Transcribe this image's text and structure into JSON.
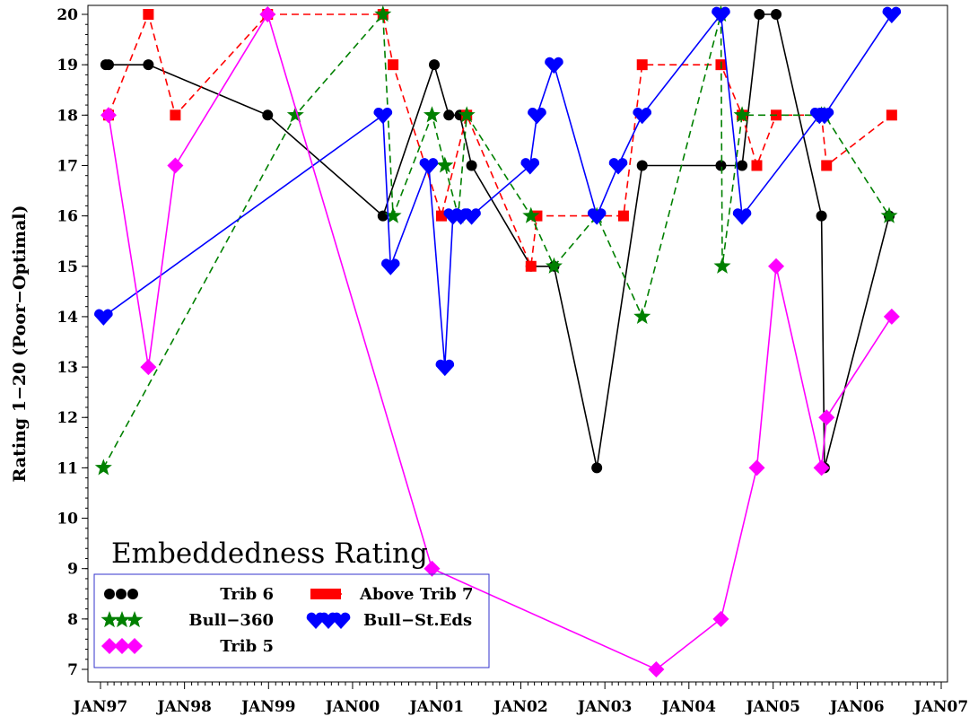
{
  "chart_data": {
    "type": "line",
    "ylabel": "Rating 1−20 (Poor−Optimal)",
    "xlabel": "",
    "ylim": [
      7,
      20
    ],
    "xlim": [
      "1997-01-01",
      "2007-01-01"
    ],
    "y_ticks": [
      7,
      8,
      9,
      10,
      11,
      12,
      13,
      14,
      15,
      16,
      17,
      18,
      19,
      20
    ],
    "x_ticks": [
      "1997-01-01",
      "1998-01-01",
      "1999-01-01",
      "2000-01-01",
      "2001-01-01",
      "2002-01-01",
      "2003-01-01",
      "2004-01-01",
      "2005-01-01",
      "2006-01-01",
      "2007-01-01"
    ],
    "x_tick_labels": [
      "JAN97",
      "JAN98",
      "JAN99",
      "JAN00",
      "JAN01",
      "JAN02",
      "JAN03",
      "JAN04",
      "JAN05",
      "JAN06",
      "JAN07"
    ],
    "legend": {
      "title": "Embeddedness Rating",
      "placement": "bottom-left"
    },
    "series": [
      {
        "name": "Trib 6",
        "color": "#000000",
        "marker": "circle",
        "dash": "solid",
        "points": [
          [
            "1997-01-24",
            19
          ],
          [
            "1997-02-05",
            19
          ],
          [
            "1997-07-28",
            19
          ],
          [
            "1998-12-28",
            18
          ],
          [
            "2000-05-12",
            16
          ],
          [
            "2000-12-21",
            19
          ],
          [
            "2001-02-22",
            18
          ],
          [
            "2001-04-11",
            18
          ],
          [
            "2001-06-01",
            17
          ],
          [
            "2002-02-14",
            15
          ],
          [
            "2002-05-25",
            15
          ],
          [
            "2002-11-27",
            11
          ],
          [
            "2003-06-12",
            17
          ],
          [
            "2004-05-19",
            17
          ],
          [
            "2004-08-19",
            17
          ],
          [
            "2004-11-02",
            20
          ],
          [
            "2005-01-14",
            20
          ],
          [
            "2005-07-30",
            16
          ],
          [
            "2005-08-12",
            11
          ],
          [
            "2006-05-20",
            16
          ]
        ]
      },
      {
        "name": "Above Trib 7",
        "color": "#ff0000",
        "marker": "square",
        "dash": "dashed",
        "points": [
          [
            "1997-02-05",
            18
          ],
          [
            "1997-07-28",
            20
          ],
          [
            "1997-11-22",
            18
          ],
          [
            "1998-12-28",
            20
          ],
          [
            "2000-05-12",
            20
          ],
          [
            "2000-06-25",
            19
          ],
          [
            "2001-01-21",
            16
          ],
          [
            "2001-05-11",
            18
          ],
          [
            "2002-02-14",
            15
          ],
          [
            "2002-03-12",
            16
          ],
          [
            "2003-03-23",
            16
          ],
          [
            "2003-06-12",
            19
          ],
          [
            "2004-05-19",
            19
          ],
          [
            "2004-08-19",
            18
          ],
          [
            "2004-10-22",
            17
          ],
          [
            "2005-01-14",
            18
          ],
          [
            "2005-07-30",
            18
          ],
          [
            "2005-08-21",
            17
          ],
          [
            "2006-05-31",
            18
          ]
        ]
      },
      {
        "name": "Bull−360",
        "color": "#008000",
        "marker": "star",
        "dash": "dashed",
        "points": [
          [
            "1997-01-14",
            11
          ],
          [
            "1999-04-28",
            18
          ],
          [
            "2000-05-12",
            20
          ],
          [
            "2000-06-25",
            16
          ],
          [
            "2000-12-11",
            18
          ],
          [
            "2001-02-05",
            17
          ],
          [
            "2001-04-04",
            16
          ],
          [
            "2001-05-11",
            18
          ],
          [
            "2002-02-14",
            16
          ],
          [
            "2002-05-25",
            15
          ],
          [
            "2002-11-27",
            16
          ],
          [
            "2003-06-12",
            14
          ],
          [
            "2004-05-19",
            20
          ],
          [
            "2004-05-25",
            15
          ],
          [
            "2004-08-19",
            18
          ],
          [
            "2005-07-30",
            18
          ],
          [
            "2005-08-12",
            18
          ],
          [
            "2006-05-20",
            16
          ]
        ]
      },
      {
        "name": "Bull−St.Eds",
        "color": "#0000ff",
        "marker": "heart",
        "dash": "solid",
        "points": [
          [
            "1997-01-14",
            14
          ],
          [
            "2000-05-12",
            18
          ],
          [
            "2000-06-14",
            15
          ],
          [
            "2000-11-27",
            17
          ],
          [
            "2001-02-05",
            13
          ],
          [
            "2001-03-12",
            16
          ],
          [
            "2001-04-15",
            16
          ],
          [
            "2001-06-01",
            16
          ],
          [
            "2002-02-10",
            17
          ],
          [
            "2002-03-12",
            18
          ],
          [
            "2002-05-25",
            19
          ],
          [
            "2002-11-27",
            16
          ],
          [
            "2003-02-28",
            17
          ],
          [
            "2003-06-12",
            18
          ],
          [
            "2004-05-19",
            20
          ],
          [
            "2004-08-19",
            16
          ],
          [
            "2005-07-21",
            18
          ],
          [
            "2005-08-12",
            18
          ],
          [
            "2006-05-31",
            20
          ]
        ]
      },
      {
        "name": "Trib 5",
        "color": "#ff00ff",
        "marker": "diamond",
        "dash": "solid",
        "points": [
          [
            "1997-02-05",
            18
          ],
          [
            "1997-07-28",
            13
          ],
          [
            "1997-11-22",
            17
          ],
          [
            "1998-12-28",
            20
          ],
          [
            "2000-12-11",
            9
          ],
          [
            "2003-08-12",
            7
          ],
          [
            "2004-05-19",
            8
          ],
          [
            "2004-10-22",
            11
          ],
          [
            "2005-01-14",
            15
          ],
          [
            "2005-07-30",
            11
          ],
          [
            "2005-08-21",
            12
          ],
          [
            "2006-05-31",
            14
          ]
        ]
      }
    ]
  }
}
